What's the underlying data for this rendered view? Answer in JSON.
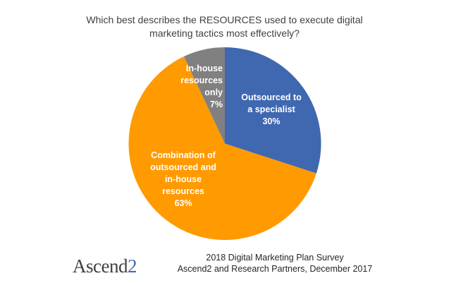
{
  "chart_data": {
    "type": "pie",
    "title": "Which best describes the RESOURCES used to execute digital marketing tactics most effectively?",
    "title_lines": [
      "Which best describes the RESOURCES used to execute digital",
      "marketing tactics most effectively?"
    ],
    "categories": [
      "Outsourced to a specialist",
      "Combination of outsourced and in-house resources",
      "In-house resources only"
    ],
    "values": [
      30,
      63,
      7
    ],
    "unit": "%",
    "colors": [
      "#4068b0",
      "#ff9a00",
      "#808080"
    ],
    "labels": [
      {
        "lines": [
          "Outsourced to",
          "a specialist",
          "30%"
        ]
      },
      {
        "lines": [
          "Combination of",
          "outsourced and",
          "in-house",
          "resources",
          "63%"
        ]
      },
      {
        "lines": [
          "In-house",
          "resources",
          "only",
          "7%"
        ]
      }
    ],
    "legend": "none",
    "start_angle_deg": 0,
    "direction": "clockwise"
  },
  "footer": {
    "logo_main": "Ascend",
    "logo_accent": "2",
    "source_line1": "2018 Digital Marketing Plan Survey",
    "source_line2": "Ascend2 and Research Partners, December 2017"
  }
}
